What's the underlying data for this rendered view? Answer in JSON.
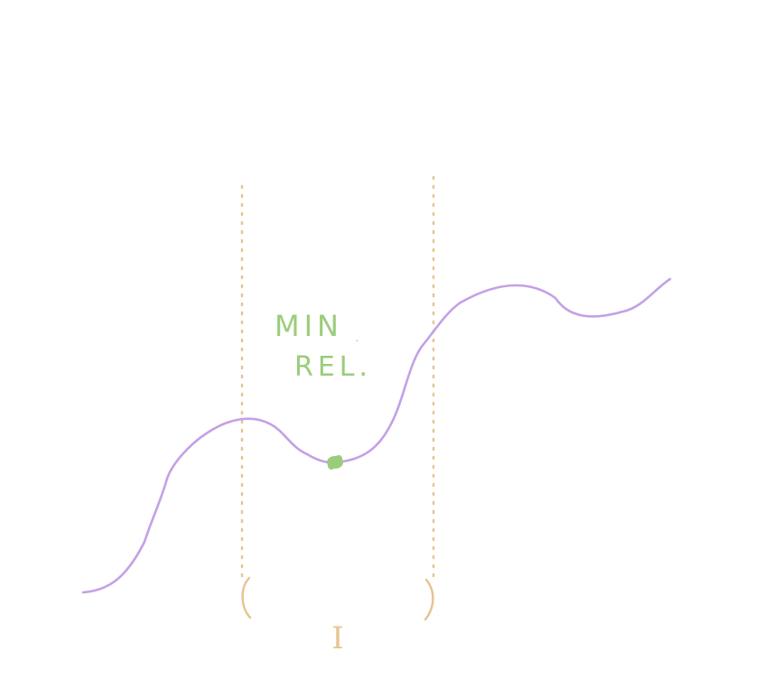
{
  "labels": {
    "line1": "MIN",
    "line2": "REL.",
    "interval": "I"
  },
  "colors": {
    "curve": "#c3a1e6",
    "interval": "#e8c491",
    "annotation": "#9bcc7c",
    "background": "#ffffff"
  }
}
